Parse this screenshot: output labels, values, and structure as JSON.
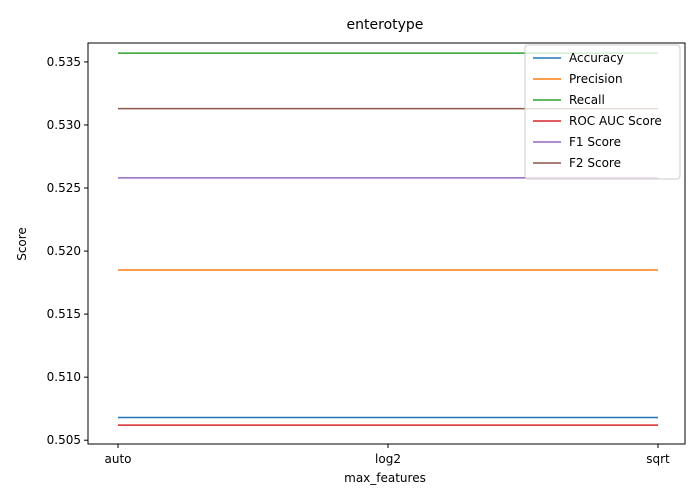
{
  "chart_data": {
    "type": "line",
    "title": "enterotype",
    "xlabel": "max_features",
    "ylabel": "Score",
    "categories": [
      "auto",
      "log2",
      "sqrt"
    ],
    "ylim": [
      0.5047,
      0.5365
    ],
    "yticks": [
      "0.505",
      "0.510",
      "0.515",
      "0.520",
      "0.525",
      "0.530",
      "0.535"
    ],
    "grid": false,
    "legend_position": "top-right",
    "series": [
      {
        "name": "Accuracy",
        "color": "#1f77b4",
        "values": [
          0.5068,
          0.5068,
          0.5068
        ]
      },
      {
        "name": "Precision",
        "color": "#ff7f0e",
        "values": [
          0.5185,
          0.5185,
          0.5185
        ]
      },
      {
        "name": "Recall",
        "color": "#2ca02c",
        "values": [
          0.5357,
          0.5357,
          0.5357
        ]
      },
      {
        "name": "ROC AUC Score",
        "color": "#d62728",
        "values": [
          0.5062,
          0.5062,
          0.5062
        ]
      },
      {
        "name": "F1 Score",
        "color": "#9467bd",
        "values": [
          0.5258,
          0.5258,
          0.5258
        ]
      },
      {
        "name": "F2 Score",
        "color": "#8c564b",
        "values": [
          0.5313,
          0.5313,
          0.5313
        ]
      }
    ]
  }
}
